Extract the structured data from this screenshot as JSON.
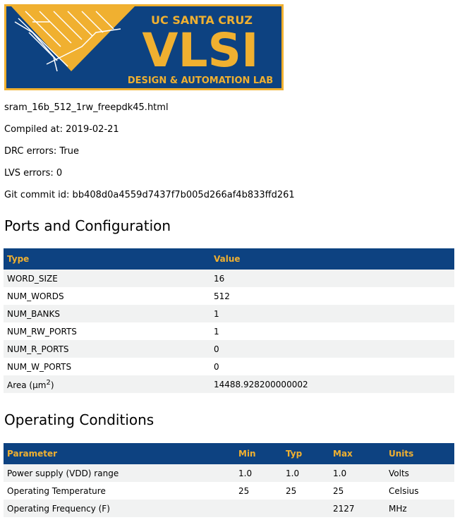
{
  "logo": {
    "top": "UC SANTA CRUZ",
    "main": "VLSI",
    "bottom": "DESIGN & AUTOMATION LAB",
    "colors": {
      "blue": "#0d4281",
      "gold": "#f0b030"
    }
  },
  "info": {
    "filename": "sram_16b_512_1rw_freepdk45.html",
    "compiled": "Compiled at: 2019-02-21",
    "drc": "DRC errors: True",
    "lvs": "LVS errors: 0",
    "git": "Git commit id: bb408d0a4559d7437f7b005d266af4b833ffd261"
  },
  "ports": {
    "title": "Ports and Configuration",
    "headers": [
      "Type",
      "Value"
    ],
    "rows": [
      [
        "WORD_SIZE",
        "16"
      ],
      [
        "NUM_WORDS",
        "512"
      ],
      [
        "NUM_BANKS",
        "1"
      ],
      [
        "NUM_RW_PORTS",
        "1"
      ],
      [
        "NUM_R_PORTS",
        "0"
      ],
      [
        "NUM_W_PORTS",
        "0"
      ]
    ],
    "area_label": "Area (µm",
    "area_sup": "2",
    "area_close": ")",
    "area_value": "14488.928200000002"
  },
  "conditions": {
    "title": "Operating Conditions",
    "headers": [
      "Parameter",
      "Min",
      "Typ",
      "Max",
      "Units"
    ],
    "rows": [
      [
        "Power supply (VDD) range",
        "1.0",
        "1.0",
        "1.0",
        "Volts"
      ],
      [
        "Operating Temperature",
        "25",
        "25",
        "25",
        "Celsius"
      ],
      [
        "Operating Frequency (F)",
        "",
        "",
        "2127",
        "MHz"
      ]
    ]
  }
}
